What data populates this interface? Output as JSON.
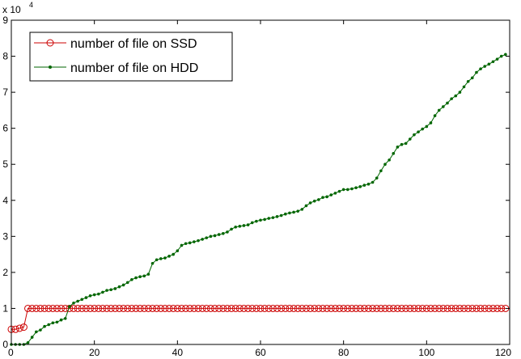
{
  "chart_data": {
    "type": "line",
    "title": "",
    "xlabel": "",
    "ylabel": "",
    "xlim": [
      0,
      120
    ],
    "ylim": [
      0,
      9
    ],
    "y_multiplier_label": "x 10",
    "y_multiplier_exponent": "4",
    "xticks": [
      "0",
      "20",
      "40",
      "60",
      "80",
      "100",
      "120"
    ],
    "yticks": [
      "0",
      "1",
      "2",
      "3",
      "4",
      "5",
      "6",
      "7",
      "8",
      "9"
    ],
    "grid": false,
    "legend_position": "top-left",
    "series": [
      {
        "name": "number of file on SSD",
        "color": "#cc0000",
        "marker": "open-circle",
        "x": [
          0,
          1,
          2,
          3,
          4,
          5,
          6,
          7,
          8,
          9,
          10,
          11,
          12,
          13,
          14,
          15,
          16,
          17,
          18,
          19,
          20,
          21,
          22,
          23,
          24,
          25,
          26,
          27,
          28,
          29,
          30,
          31,
          32,
          33,
          34,
          35,
          36,
          37,
          38,
          39,
          40,
          41,
          42,
          43,
          44,
          45,
          46,
          47,
          48,
          49,
          50,
          51,
          52,
          53,
          54,
          55,
          56,
          57,
          58,
          59,
          60,
          61,
          62,
          63,
          64,
          65,
          66,
          67,
          68,
          69,
          70,
          71,
          72,
          73,
          74,
          75,
          76,
          77,
          78,
          79,
          80,
          81,
          82,
          83,
          84,
          85,
          86,
          87,
          88,
          89,
          90,
          91,
          92,
          93,
          94,
          95,
          96,
          97,
          98,
          99,
          100,
          101,
          102,
          103,
          104,
          105,
          106,
          107,
          108,
          109,
          110,
          111,
          112,
          113,
          114,
          115,
          116,
          117,
          118,
          119
        ],
        "values": [
          0.42,
          0.42,
          0.45,
          0.48,
          1.0,
          1.0,
          1.0,
          1.0,
          1.0,
          1.0,
          1.0,
          1.0,
          1.0,
          1.0,
          1.0,
          1.0,
          1.0,
          1.0,
          1.0,
          1.0,
          1.0,
          1.0,
          1.0,
          1.0,
          1.0,
          1.0,
          1.0,
          1.0,
          1.0,
          1.0,
          1.0,
          1.0,
          1.0,
          1.0,
          1.0,
          1.0,
          1.0,
          1.0,
          1.0,
          1.0,
          1.0,
          1.0,
          1.0,
          1.0,
          1.0,
          1.0,
          1.0,
          1.0,
          1.0,
          1.0,
          1.0,
          1.0,
          1.0,
          1.0,
          1.0,
          1.0,
          1.0,
          1.0,
          1.0,
          1.0,
          1.0,
          1.0,
          1.0,
          1.0,
          1.0,
          1.0,
          1.0,
          1.0,
          1.0,
          1.0,
          1.0,
          1.0,
          1.0,
          1.0,
          1.0,
          1.0,
          1.0,
          1.0,
          1.0,
          1.0,
          1.0,
          1.0,
          1.0,
          1.0,
          1.0,
          1.0,
          1.0,
          1.0,
          1.0,
          1.0,
          1.0,
          1.0,
          1.0,
          1.0,
          1.0,
          1.0,
          1.0,
          1.0,
          1.0,
          1.0,
          1.0,
          1.0,
          1.0,
          1.0,
          1.0,
          1.0,
          1.0,
          1.0,
          1.0,
          1.0,
          1.0,
          1.0,
          1.0,
          1.0,
          1.0,
          1.0,
          1.0,
          1.0,
          1.0,
          1.0
        ]
      },
      {
        "name": "number of file on HDD",
        "color": "#006600",
        "marker": "dot",
        "x": [
          0,
          1,
          2,
          3,
          4,
          5,
          6,
          7,
          8,
          9,
          10,
          11,
          12,
          13,
          14,
          15,
          16,
          17,
          18,
          19,
          20,
          21,
          22,
          23,
          24,
          25,
          26,
          27,
          28,
          29,
          30,
          31,
          32,
          33,
          34,
          35,
          36,
          37,
          38,
          39,
          40,
          41,
          42,
          43,
          44,
          45,
          46,
          47,
          48,
          49,
          50,
          51,
          52,
          53,
          54,
          55,
          56,
          57,
          58,
          59,
          60,
          61,
          62,
          63,
          64,
          65,
          66,
          67,
          68,
          69,
          70,
          71,
          72,
          73,
          74,
          75,
          76,
          77,
          78,
          79,
          80,
          81,
          82,
          83,
          84,
          85,
          86,
          87,
          88,
          89,
          90,
          91,
          92,
          93,
          94,
          95,
          96,
          97,
          98,
          99,
          100,
          101,
          102,
          103,
          104,
          105,
          106,
          107,
          108,
          109,
          110,
          111,
          112,
          113,
          114,
          115,
          116,
          117,
          118,
          119
        ],
        "values": [
          0.0,
          0.0,
          0.0,
          0.0,
          0.05,
          0.2,
          0.35,
          0.4,
          0.5,
          0.55,
          0.6,
          0.62,
          0.68,
          0.72,
          1.05,
          1.15,
          1.2,
          1.25,
          1.3,
          1.35,
          1.38,
          1.4,
          1.45,
          1.5,
          1.52,
          1.55,
          1.6,
          1.65,
          1.72,
          1.8,
          1.85,
          1.88,
          1.9,
          1.95,
          2.25,
          2.35,
          2.38,
          2.4,
          2.45,
          2.5,
          2.6,
          2.75,
          2.8,
          2.82,
          2.85,
          2.88,
          2.92,
          2.96,
          3.0,
          3.02,
          3.05,
          3.08,
          3.12,
          3.2,
          3.26,
          3.28,
          3.3,
          3.32,
          3.38,
          3.42,
          3.45,
          3.47,
          3.5,
          3.52,
          3.55,
          3.58,
          3.62,
          3.65,
          3.67,
          3.7,
          3.75,
          3.85,
          3.93,
          3.98,
          4.02,
          4.08,
          4.1,
          4.15,
          4.2,
          4.25,
          4.3,
          4.3,
          4.32,
          4.35,
          4.38,
          4.42,
          4.45,
          4.5,
          4.62,
          4.82,
          5.0,
          5.12,
          5.3,
          5.48,
          5.55,
          5.58,
          5.7,
          5.82,
          5.9,
          5.98,
          6.05,
          6.15,
          6.35,
          6.5,
          6.6,
          6.7,
          6.82,
          6.9,
          7.0,
          7.15,
          7.3,
          7.4,
          7.55,
          7.65,
          7.72,
          7.78,
          7.85,
          7.92,
          8.0,
          8.05
        ]
      }
    ]
  }
}
